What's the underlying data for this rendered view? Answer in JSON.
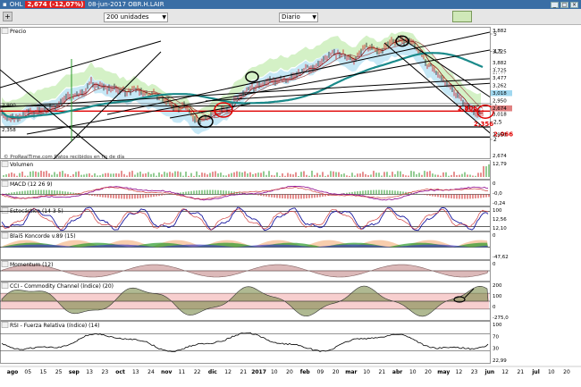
{
  "window": {
    "symbol": "OHL",
    "last_price": "2,674 (-12,07%)",
    "date_code": "08-jun-2017 OBR.H.LAIR"
  },
  "toolbar": {
    "units_select": "200 unidades",
    "period_select": "Diario"
  },
  "colors": {
    "titlebar": "#3a6ea5",
    "price_bars": "#cc0000",
    "ema_line": "#1a8a8a",
    "cloud_green": "#b8e8a0",
    "cloud_blue": "#a0d8f0",
    "circle_red": "#e00000"
  },
  "chart_data": [
    {
      "type": "line",
      "title": "Precio",
      "y_ticks": [
        "5",
        "4,5",
        "4",
        "3,5",
        "3",
        "2,5",
        "2"
      ],
      "x_ticks": [
        "ago",
        "05",
        "15",
        "25",
        "sep",
        "13",
        "23",
        "oct",
        "13",
        "24",
        "nov",
        "11",
        "22",
        "dic",
        "12",
        "21",
        "2017",
        "10",
        "20",
        "feb",
        "09",
        "20",
        "mar",
        "10",
        "21",
        "abr",
        "10",
        "20",
        "may",
        "12",
        "23",
        "jun",
        "12",
        "21",
        "jul",
        "10",
        "20"
      ],
      "right_labels": [
        "3,882",
        "3,725",
        "3,477",
        "3,262",
        "3,018",
        "2,950",
        "2,674"
      ],
      "annotations": [
        "2,806",
        "2,356",
        "2,066"
      ],
      "left_labels": [
        "2,900",
        "2,358"
      ]
    },
    {
      "type": "bar",
      "title": "Volumen",
      "right_labels": [
        "12,79"
      ],
      "source_note": "© ProRealTime.com  Datos recibidos en fin de día"
    },
    {
      "type": "line",
      "title": "MACD (12 26 9)",
      "right_labels": [
        "0",
        "-0,0",
        "-0,24"
      ]
    },
    {
      "type": "line",
      "title": "Estocástico (14 3 5)",
      "right_labels": [
        "100",
        "12,56",
        "12,10"
      ]
    },
    {
      "type": "area",
      "title": "Blai5 Koncorde v.89 (15)",
      "right_labels": [
        "0",
        "-47,62"
      ]
    },
    {
      "type": "area",
      "title": "Momentum (12)",
      "right_labels": [
        "0"
      ]
    },
    {
      "type": "area",
      "title": "CCI - Commodity Channel (índice) (20)",
      "right_labels": [
        "200",
        "100",
        "0",
        "-275,0"
      ]
    },
    {
      "type": "line",
      "title": "RSI - Fuerza Relativa (índice) (14)",
      "right_labels": [
        "100",
        "70",
        "30",
        "22,99"
      ]
    }
  ]
}
